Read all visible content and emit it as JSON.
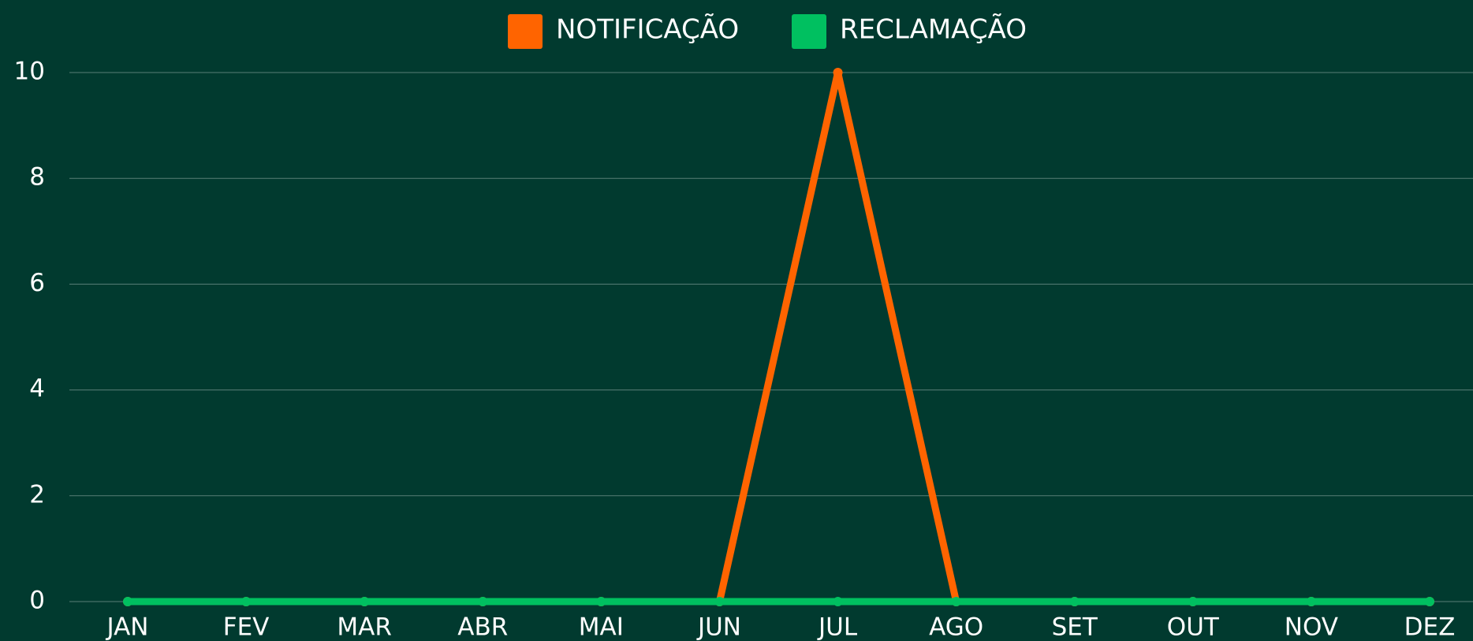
{
  "chart_data": {
    "type": "line",
    "categories": [
      "JAN",
      "FEV",
      "MAR",
      "ABR",
      "MAI",
      "JUN",
      "JUL",
      "AGO",
      "SET",
      "OUT",
      "NOV",
      "DEZ"
    ],
    "series": [
      {
        "name": "NOTIFICAÇÃO",
        "color": "#ff6400",
        "values": [
          0,
          0,
          0,
          0,
          0,
          0,
          10,
          0,
          0,
          0,
          0,
          0
        ]
      },
      {
        "name": "RECLAMAÇÃO",
        "color": "#00c060",
        "values": [
          0,
          0,
          0,
          0,
          0,
          0,
          0,
          0,
          0,
          0,
          0,
          0
        ]
      }
    ],
    "ylim": [
      0,
      10
    ],
    "yticks": [
      0,
      2,
      4,
      6,
      8,
      10
    ],
    "grid": true,
    "legend": "top"
  }
}
